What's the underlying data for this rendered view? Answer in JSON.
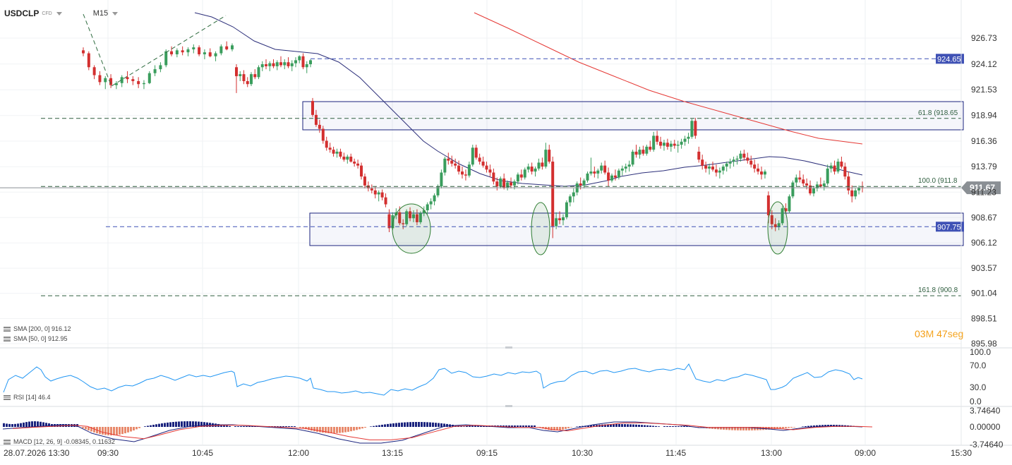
{
  "header": {
    "symbol": "USDCLP",
    "symbol_type": "CFD",
    "timeframe": "M15"
  },
  "price_axis": {
    "labels": [
      "926.73",
      "924.12",
      "921.53",
      "918.94",
      "916.36",
      "913.79",
      "911.23",
      "908.67",
      "906.12",
      "903.57",
      "901.04",
      "898.51",
      "895.98"
    ]
  },
  "price_tags": [
    {
      "value": "924.65",
      "color": "#3f51b5"
    },
    {
      "value": "907.75",
      "color": "#3f51b5"
    },
    {
      "value": "911.67",
      "color": "#8a8f94"
    }
  ],
  "fib_labels": [
    {
      "text": "61.8 (918.65"
    },
    {
      "text": "100.0 (911.8"
    },
    {
      "text": "161.8 (900.8"
    }
  ],
  "indicators": {
    "sma200": "SMA [200, 0] 916.12",
    "sma50": "SMA [50, 0] 912.95",
    "rsi": "RSI [14] 46.4",
    "macd": "MACD [12, 26, 9] -0.08345, 0.11632"
  },
  "timer": {
    "minutes": "03",
    "minutes_unit": "M",
    "seconds": "47",
    "seconds_unit": "seg"
  },
  "rsi_axis": [
    "100.0",
    "70.0",
    "30.0",
    "0.0"
  ],
  "macd_axis": [
    "3.74640",
    "0.00000",
    "-3.74640"
  ],
  "time_axis": [
    "28.07.2026 13:30",
    "09:30",
    "10:45",
    "12:00",
    "13:15",
    "09:15",
    "10:30",
    "11:45",
    "13:00",
    "09:00",
    "15:30"
  ],
  "colors": {
    "bull": "#3a9d5d",
    "bear": "#d32f2f",
    "sma50": "#2c2f7a",
    "sma200": "#e53935",
    "rsi": "#2196f3",
    "zone": "#1a237e",
    "ellipse": "#2e7d32"
  },
  "chart_data": {
    "type": "candlestick",
    "ylim": [
      895.98,
      926.73
    ],
    "candles": [
      [
        925.5,
        925.8,
        924.9,
        925.2
      ],
      [
        925.2,
        925.4,
        923.5,
        923.8
      ],
      [
        923.8,
        924.0,
        922.6,
        923.0
      ],
      [
        923.0,
        923.4,
        922.0,
        922.3
      ],
      [
        922.3,
        922.9,
        921.6,
        922.7
      ],
      [
        922.7,
        923.1,
        921.7,
        922.0
      ],
      [
        922.0,
        922.4,
        921.6,
        922.2
      ],
      [
        922.2,
        923.0,
        921.8,
        922.8
      ],
      [
        922.8,
        923.4,
        922.2,
        922.6
      ],
      [
        922.6,
        922.9,
        922.0,
        922.4
      ],
      [
        922.4,
        922.8,
        921.7,
        922.1
      ],
      [
        922.1,
        922.5,
        921.6,
        922.2
      ],
      [
        922.2,
        923.4,
        922.1,
        923.2
      ],
      [
        923.2,
        924.0,
        922.9,
        923.6
      ],
      [
        923.6,
        924.3,
        923.3,
        924.0
      ],
      [
        924.0,
        925.6,
        923.8,
        925.4
      ],
      [
        925.4,
        925.9,
        924.9,
        925.1
      ],
      [
        925.1,
        925.7,
        924.8,
        925.5
      ],
      [
        925.5,
        925.9,
        925.0,
        925.3
      ],
      [
        925.3,
        925.8,
        924.9,
        925.6
      ],
      [
        925.6,
        926.1,
        925.2,
        925.8
      ],
      [
        925.8,
        926.0,
        924.9,
        925.1
      ],
      [
        925.1,
        925.6,
        924.6,
        925.3
      ],
      [
        925.3,
        925.7,
        924.8,
        924.9
      ],
      [
        924.9,
        925.4,
        924.4,
        925.2
      ],
      [
        925.2,
        926.1,
        925.0,
        925.9
      ],
      [
        925.9,
        926.4,
        925.5,
        925.6
      ],
      [
        925.6,
        926.2,
        925.4,
        926.0
      ],
      [
        923.8,
        924.1,
        921.2,
        922.9
      ],
      [
        922.9,
        923.4,
        922.4,
        923.1
      ],
      [
        923.1,
        923.5,
        922.1,
        922.4
      ],
      [
        922.4,
        922.8,
        921.8,
        922.1
      ],
      [
        922.1,
        923.3,
        921.9,
        923.1
      ],
      [
        923.1,
        923.6,
        922.6,
        922.8
      ],
      [
        922.8,
        924.0,
        922.6,
        923.8
      ],
      [
        923.8,
        924.4,
        923.4,
        924.1
      ],
      [
        924.1,
        924.6,
        923.6,
        923.9
      ],
      [
        923.9,
        924.4,
        923.4,
        924.2
      ],
      [
        924.2,
        924.6,
        923.7,
        923.9
      ],
      [
        923.9,
        924.5,
        923.5,
        924.3
      ],
      [
        924.3,
        924.9,
        923.8,
        924.0
      ],
      [
        924.0,
        924.6,
        923.6,
        924.3
      ],
      [
        924.3,
        924.8,
        923.7,
        923.9
      ],
      [
        923.9,
        924.5,
        923.4,
        924.2
      ],
      [
        924.2,
        924.8,
        923.8,
        924.5
      ],
      [
        924.5,
        925.0,
        924.2,
        924.9
      ],
      [
        924.9,
        925.2,
        923.6,
        923.8
      ],
      [
        923.8,
        924.4,
        923.2,
        924.1
      ],
      [
        924.1,
        924.6,
        923.8,
        924.5
      ],
      [
        920.4,
        920.7,
        918.8,
        919.0
      ],
      [
        919.0,
        919.5,
        917.8,
        918.0
      ],
      [
        918.0,
        918.5,
        917.2,
        917.6
      ],
      [
        917.6,
        917.9,
        916.1,
        916.4
      ],
      [
        916.4,
        916.8,
        915.4,
        915.7
      ],
      [
        915.7,
        916.2,
        915.2,
        915.5
      ],
      [
        915.5,
        915.8,
        914.8,
        915.1
      ],
      [
        915.1,
        915.6,
        914.7,
        915.3
      ],
      [
        915.3,
        915.6,
        914.6,
        914.8
      ],
      [
        914.8,
        915.2,
        914.3,
        914.5
      ],
      [
        914.5,
        915.0,
        914.1,
        914.8
      ],
      [
        914.8,
        915.1,
        914.2,
        914.3
      ],
      [
        914.3,
        914.6,
        913.8,
        914.1
      ],
      [
        914.1,
        914.5,
        913.6,
        913.9
      ],
      [
        913.9,
        914.2,
        912.5,
        912.8
      ],
      [
        912.8,
        913.1,
        911.6,
        911.9
      ],
      [
        911.9,
        912.3,
        911.3,
        911.6
      ],
      [
        911.6,
        912.0,
        911.1,
        911.4
      ],
      [
        911.4,
        911.8,
        910.6,
        911.0
      ],
      [
        911.0,
        911.4,
        910.3,
        911.2
      ],
      [
        911.2,
        911.5,
        910.4,
        910.7
      ],
      [
        910.7,
        911.1,
        909.7,
        910.0
      ],
      [
        909.0,
        909.5,
        907.2,
        907.6
      ],
      [
        907.6,
        909.2,
        907.4,
        908.9
      ],
      [
        908.9,
        909.6,
        908.5,
        909.2
      ],
      [
        909.2,
        909.8,
        907.9,
        908.1
      ],
      [
        908.1,
        908.5,
        907.5,
        908.0
      ],
      [
        908.0,
        909.5,
        907.8,
        909.3
      ],
      [
        909.3,
        909.7,
        908.3,
        908.6
      ],
      [
        908.6,
        909.4,
        908.2,
        909.0
      ],
      [
        909.0,
        909.5,
        907.9,
        908.2
      ],
      [
        908.2,
        909.3,
        908.0,
        909.1
      ],
      [
        909.1,
        909.8,
        908.8,
        909.4
      ],
      [
        909.4,
        910.2,
        909.0,
        910.0
      ],
      [
        910.0,
        910.6,
        909.5,
        910.3
      ],
      [
        910.3,
        911.1,
        909.9,
        910.9
      ],
      [
        910.9,
        912.0,
        910.7,
        911.8
      ],
      [
        911.8,
        913.5,
        911.6,
        913.2
      ],
      [
        913.2,
        914.8,
        912.9,
        914.6
      ],
      [
        914.6,
        915.2,
        914.0,
        914.4
      ],
      [
        914.4,
        914.9,
        913.8,
        914.1
      ],
      [
        914.1,
        914.6,
        913.6,
        913.9
      ],
      [
        913.9,
        914.4,
        913.0,
        913.3
      ],
      [
        913.3,
        913.8,
        912.6,
        913.0
      ],
      [
        913.0,
        913.5,
        912.4,
        912.9
      ],
      [
        912.9,
        914.3,
        912.7,
        914.0
      ],
      [
        914.0,
        916.0,
        913.8,
        915.7
      ],
      [
        915.7,
        916.0,
        914.5,
        914.7
      ],
      [
        914.7,
        915.1,
        914.0,
        914.3
      ],
      [
        914.3,
        914.8,
        913.7,
        913.9
      ],
      [
        913.9,
        914.3,
        913.2,
        913.5
      ],
      [
        913.5,
        914.0,
        912.8,
        913.2
      ],
      [
        913.2,
        913.6,
        912.0,
        912.3
      ],
      [
        912.3,
        912.7,
        911.4,
        911.8
      ],
      [
        911.8,
        912.8,
        911.6,
        912.6
      ],
      [
        912.6,
        913.1,
        911.5,
        911.7
      ],
      [
        911.7,
        912.4,
        911.4,
        912.2
      ],
      [
        912.2,
        912.7,
        911.6,
        911.9
      ],
      [
        911.9,
        912.5,
        911.5,
        912.3
      ],
      [
        912.3,
        913.2,
        912.0,
        913.0
      ],
      [
        913.0,
        913.5,
        912.4,
        912.7
      ],
      [
        912.7,
        913.7,
        912.5,
        913.5
      ],
      [
        913.5,
        914.1,
        913.2,
        913.8
      ],
      [
        913.8,
        914.2,
        913.0,
        913.3
      ],
      [
        913.3,
        913.8,
        912.8,
        913.6
      ],
      [
        913.6,
        914.6,
        913.4,
        914.2
      ],
      [
        914.2,
        914.7,
        913.5,
        913.8
      ],
      [
        913.8,
        916.2,
        913.6,
        915.5
      ],
      [
        915.5,
        916.0,
        914.1,
        914.3
      ],
      [
        914.3,
        914.8,
        906.6,
        907.8
      ],
      [
        907.8,
        909.2,
        907.5,
        908.6
      ],
      [
        908.6,
        909.3,
        908.0,
        908.4
      ],
      [
        908.4,
        909.0,
        907.9,
        908.7
      ],
      [
        908.7,
        910.4,
        908.5,
        910.2
      ],
      [
        910.2,
        911.0,
        909.8,
        910.8
      ],
      [
        910.8,
        911.6,
        910.2,
        911.2
      ],
      [
        911.2,
        912.3,
        910.9,
        912.1
      ],
      [
        912.1,
        912.7,
        911.5,
        911.9
      ],
      [
        911.9,
        912.6,
        911.6,
        912.4
      ],
      [
        912.4,
        913.3,
        912.2,
        913.1
      ],
      [
        913.1,
        914.7,
        912.9,
        913.3
      ],
      [
        913.3,
        913.8,
        912.7,
        913.1
      ],
      [
        913.1,
        913.6,
        912.6,
        913.4
      ],
      [
        913.4,
        914.2,
        913.1,
        913.9
      ],
      [
        913.9,
        914.4,
        913.0,
        913.2
      ],
      [
        913.2,
        913.7,
        911.8,
        912.4
      ],
      [
        912.4,
        913.1,
        912.2,
        912.9
      ],
      [
        912.9,
        913.5,
        912.4,
        912.7
      ],
      [
        912.7,
        913.6,
        912.5,
        913.4
      ],
      [
        913.4,
        913.9,
        912.9,
        913.6
      ],
      [
        913.6,
        914.1,
        913.2,
        913.8
      ],
      [
        913.8,
        914.4,
        913.3,
        914.0
      ],
      [
        914.0,
        915.5,
        913.8,
        915.3
      ],
      [
        915.3,
        916.0,
        914.7,
        915.0
      ],
      [
        915.0,
        915.8,
        914.6,
        915.5
      ],
      [
        915.5,
        915.9,
        914.9,
        915.1
      ],
      [
        915.1,
        916.0,
        914.9,
        915.8
      ],
      [
        915.8,
        916.4,
        915.3,
        915.5
      ],
      [
        915.5,
        917.3,
        915.3,
        916.9
      ],
      [
        916.9,
        917.4,
        916.0,
        916.3
      ],
      [
        916.3,
        916.8,
        915.6,
        915.9
      ],
      [
        915.9,
        916.5,
        915.4,
        916.2
      ],
      [
        916.2,
        916.6,
        915.5,
        915.8
      ],
      [
        915.8,
        916.4,
        915.3,
        916.1
      ],
      [
        916.1,
        916.5,
        915.6,
        915.9
      ],
      [
        915.9,
        916.4,
        915.2,
        916.0
      ],
      [
        916.0,
        916.6,
        915.6,
        916.3
      ],
      [
        916.3,
        916.9,
        915.9,
        916.6
      ],
      [
        916.6,
        917.2,
        916.1,
        916.8
      ],
      [
        916.8,
        918.6,
        916.6,
        918.4
      ],
      [
        918.4,
        918.7,
        916.6,
        916.9
      ],
      [
        915.3,
        915.8,
        914.2,
        914.5
      ],
      [
        914.5,
        915.0,
        913.5,
        913.9
      ],
      [
        913.9,
        914.3,
        913.2,
        913.6
      ],
      [
        913.6,
        914.1,
        913.0,
        913.8
      ],
      [
        913.8,
        914.3,
        913.3,
        913.5
      ],
      [
        913.5,
        914.0,
        912.8,
        913.2
      ],
      [
        913.2,
        913.7,
        912.6,
        913.4
      ],
      [
        913.4,
        914.0,
        913.0,
        913.8
      ],
      [
        913.8,
        914.3,
        913.3,
        914.1
      ],
      [
        914.1,
        914.6,
        913.6,
        914.3
      ],
      [
        914.3,
        914.8,
        913.8,
        914.5
      ],
      [
        914.5,
        914.9,
        914.0,
        914.6
      ],
      [
        914.6,
        915.4,
        914.3,
        915.1
      ],
      [
        915.1,
        915.5,
        914.4,
        914.7
      ],
      [
        914.7,
        915.2,
        914.1,
        914.4
      ],
      [
        914.4,
        914.9,
        913.7,
        914.0
      ],
      [
        914.0,
        914.5,
        913.2,
        913.6
      ],
      [
        913.6,
        914.1,
        913.0,
        913.3
      ],
      [
        913.3,
        913.8,
        912.5,
        913.0
      ],
      [
        913.0,
        913.5,
        912.6,
        913.3
      ],
      [
        910.9,
        911.3,
        908.1,
        908.9
      ],
      [
        908.9,
        909.4,
        907.5,
        908.0
      ],
      [
        908.0,
        908.6,
        907.3,
        907.7
      ],
      [
        907.7,
        908.4,
        907.4,
        908.1
      ],
      [
        908.1,
        909.8,
        907.9,
        909.6
      ],
      [
        909.6,
        910.1,
        909.0,
        909.3
      ],
      [
        909.3,
        911.0,
        909.1,
        910.8
      ],
      [
        910.8,
        912.4,
        910.6,
        912.2
      ],
      [
        912.2,
        913.0,
        911.8,
        912.7
      ],
      [
        912.7,
        913.4,
        912.2,
        912.5
      ],
      [
        912.5,
        913.0,
        911.8,
        912.1
      ],
      [
        912.1,
        912.6,
        911.5,
        911.9
      ],
      [
        911.9,
        912.4,
        910.9,
        911.1
      ],
      [
        911.1,
        911.8,
        910.8,
        911.6
      ],
      [
        911.6,
        912.3,
        911.3,
        912.0
      ],
      [
        912.0,
        912.7,
        911.7,
        911.8
      ],
      [
        911.8,
        912.4,
        911.4,
        912.1
      ],
      [
        912.1,
        914.0,
        911.9,
        913.6
      ],
      [
        913.6,
        914.2,
        913.2,
        913.9
      ],
      [
        913.9,
        914.4,
        913.0,
        913.3
      ],
      [
        913.3,
        914.6,
        913.1,
        914.3
      ],
      [
        914.3,
        914.8,
        913.6,
        913.8
      ],
      [
        913.8,
        914.2,
        912.5,
        912.8
      ],
      [
        912.8,
        913.3,
        911.0,
        911.4
      ],
      [
        911.4,
        911.9,
        910.2,
        910.8
      ],
      [
        910.8,
        911.6,
        910.5,
        911.4
      ],
      [
        911.4,
        911.9,
        911.0,
        911.7
      ],
      [
        911.7,
        912.3,
        911.2,
        911.67
      ]
    ]
  }
}
